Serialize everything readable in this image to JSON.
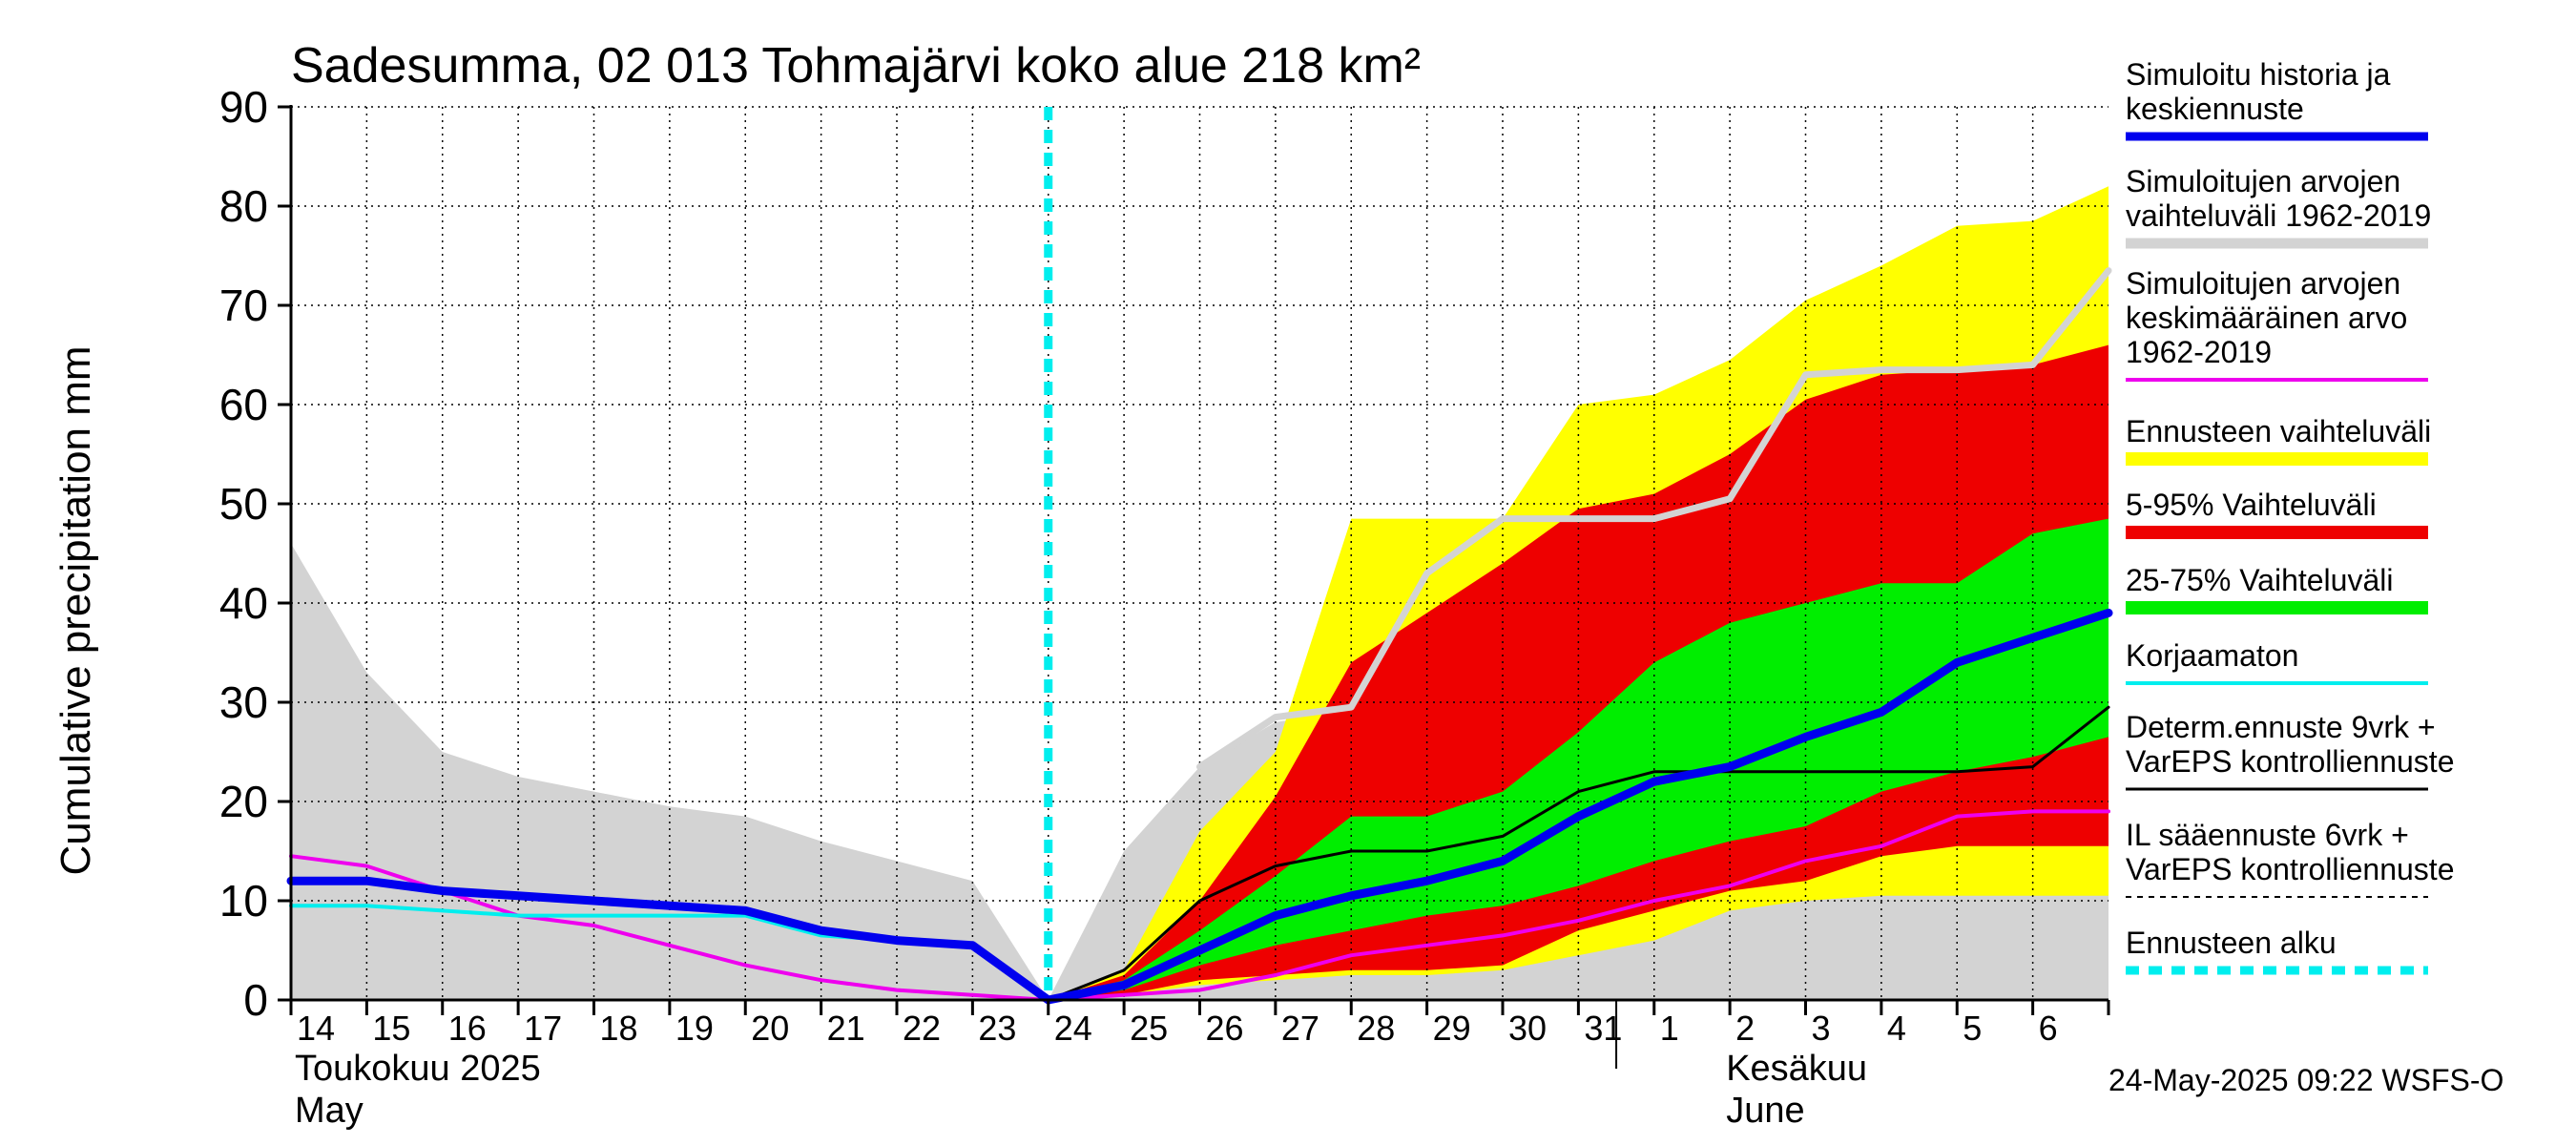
{
  "title": "Sadesumma, 02 013 Tohmajärvi koko alue 218 km²",
  "footer": "24-May-2025 09:22 WSFS-O",
  "colors": {
    "history": "#0000ee",
    "climate_range": "#d3d3d3",
    "climate_mean": "#ee00ee",
    "forecast_range": "#ffff00",
    "p5_95": "#ee0000",
    "p25_75": "#00ee00",
    "uncorrected": "#00eeee",
    "determ": "#000000",
    "forecast_start": "#00eeee"
  },
  "legend": [
    {
      "lines": [
        "Simuloitu historia ja",
        "keskiennuste"
      ],
      "kind": "line",
      "color": "#0000ee",
      "width": 9
    },
    {
      "lines": [
        "Simuloitujen arvojen",
        "vaihteluväli 1962-2019"
      ],
      "kind": "line",
      "color": "#d3d3d3",
      "width": 11
    },
    {
      "lines": [
        "Simuloitujen arvojen",
        "keskimääräinen arvo",
        "   1962-2019"
      ],
      "kind": "line",
      "color": "#ee00ee",
      "width": 4
    },
    {
      "lines": [
        "Ennusteen vaihteluväli"
      ],
      "kind": "line",
      "color": "#ffff00",
      "width": 14
    },
    {
      "lines": [
        "5-95% Vaihteluväli"
      ],
      "kind": "line",
      "color": "#ee0000",
      "width": 14
    },
    {
      "lines": [
        "25-75% Vaihteluväli"
      ],
      "kind": "line",
      "color": "#00ee00",
      "width": 14
    },
    {
      "lines": [
        "Korjaamaton"
      ],
      "kind": "line",
      "color": "#00eeee",
      "width": 4
    },
    {
      "lines": [
        "Determ.ennuste 9vrk +",
        "VarEPS kontrolliennuste"
      ],
      "kind": "line",
      "color": "#000000",
      "width": 3
    },
    {
      "lines": [
        "IL sääennuste 6vrk  +",
        "  VarEPS kontrolliennuste"
      ],
      "kind": "dashed",
      "color": "#000000",
      "width": 2
    },
    {
      "lines": [
        "Ennusteen alku"
      ],
      "kind": "dashed",
      "color": "#00eeee",
      "width": 9
    }
  ],
  "chart_data": {
    "type": "area",
    "title": "Sadesumma, 02 013 Tohmajärvi koko alue 218 km²",
    "ylabel": "Cumulative precipitation   mm",
    "xlabel": "",
    "ylim": [
      0,
      90
    ],
    "yticks": [
      0,
      10,
      20,
      30,
      40,
      50,
      60,
      70,
      80,
      90
    ],
    "xlim": [
      0,
      24
    ],
    "x_tick_labels": [
      "14",
      "15",
      "16",
      "17",
      "18",
      "19",
      "20",
      "21",
      "22",
      "23",
      "24",
      "25",
      "26",
      "27",
      "28",
      "29",
      "30",
      "31",
      "1",
      "2",
      "3",
      "4",
      "5",
      "6"
    ],
    "month_labels": [
      {
        "x": 0,
        "lines": [
          "Toukokuu  2025",
          "May"
        ]
      },
      {
        "x": 18.9,
        "lines": [
          "Kesäkuu",
          "June"
        ]
      }
    ],
    "month_divider_x": 17.5,
    "forecast_start_x": 10,
    "grid": true,
    "legend_position": "right",
    "series": [
      {
        "name": "Simuloitujen arvojen vaihteluväli 1962-2019",
        "kind": "band",
        "color": "#d3d3d3",
        "x": [
          0,
          1,
          2,
          3,
          4,
          5,
          6,
          7,
          8,
          9,
          10,
          11,
          12,
          13,
          14,
          15,
          16,
          17,
          18,
          19,
          20,
          21,
          22,
          23,
          24
        ],
        "upper": [
          46,
          33,
          25,
          22.5,
          21,
          19.5,
          18.5,
          16,
          14,
          12,
          0,
          15,
          23.5,
          28,
          29,
          40,
          46,
          48,
          48.5,
          49,
          61,
          62,
          63,
          64,
          73
        ],
        "lower": [
          0,
          0,
          0,
          0,
          0,
          0,
          0,
          0,
          0,
          0,
          0,
          0,
          0,
          0,
          0,
          0,
          0,
          0,
          0,
          0,
          0,
          0,
          0,
          0,
          0
        ]
      },
      {
        "name": "Ennusteen vaihteluväli",
        "kind": "band",
        "color": "#ffff00",
        "x": [
          10,
          11,
          12,
          13,
          14,
          15,
          16,
          17,
          18,
          19,
          20,
          21,
          22,
          23,
          24
        ],
        "upper": [
          0,
          3,
          17,
          25,
          48.5,
          48.5,
          48.5,
          60,
          61,
          64.5,
          70.5,
          74,
          78,
          78.5,
          82
        ],
        "lower": [
          0,
          0.5,
          1.5,
          2,
          2.5,
          2.5,
          3,
          4.5,
          6,
          9,
          10,
          10.5,
          10.5,
          10.5,
          10.5
        ]
      },
      {
        "name": "5-95% Vaihteluväli",
        "kind": "band",
        "color": "#ee0000",
        "x": [
          10,
          11,
          12,
          13,
          14,
          15,
          16,
          17,
          18,
          19,
          20,
          21,
          22,
          23,
          24
        ],
        "upper": [
          0,
          2.5,
          10,
          20.5,
          34,
          39,
          44,
          49.5,
          51,
          55,
          60.5,
          63,
          63.5,
          64,
          66
        ],
        "lower": [
          0,
          0.5,
          2,
          2.5,
          3,
          3,
          3.5,
          7,
          9,
          11,
          12,
          14.5,
          15.5,
          15.5,
          15.5
        ]
      },
      {
        "name": "25-75% Vaihteluväli",
        "kind": "band",
        "color": "#00ee00",
        "x": [
          10,
          11,
          12,
          13,
          14,
          15,
          16,
          17,
          18,
          19,
          20,
          21,
          22,
          23,
          24
        ],
        "upper": [
          0,
          2,
          7,
          12.5,
          18.5,
          18.5,
          21,
          27,
          34,
          38,
          40,
          42,
          42,
          47,
          48.5
        ],
        "lower": [
          0,
          1,
          3.5,
          5.5,
          7,
          8.5,
          9.5,
          11.5,
          14,
          16,
          17.5,
          21,
          23,
          24.5,
          26.5
        ]
      },
      {
        "name": "Simuloitujen arvojen keskimääräinen arvo 1962-2019",
        "kind": "line",
        "color": "#ee00ee",
        "width": 4,
        "x": [
          0,
          1,
          2,
          3,
          4,
          5,
          6,
          7,
          8,
          9,
          10,
          11,
          12,
          13,
          14,
          15,
          16,
          17,
          18,
          19,
          20,
          21,
          22,
          23,
          24
        ],
        "y": [
          14.5,
          13.5,
          11,
          8.5,
          7.5,
          5.5,
          3.5,
          2,
          1,
          0.5,
          0,
          0.5,
          1,
          2.5,
          4.5,
          5.5,
          6.5,
          8,
          10,
          11.5,
          14,
          15.5,
          18.5,
          19,
          19
        ]
      },
      {
        "name": "Korjaamaton",
        "kind": "line",
        "color": "#00eeee",
        "width": 4,
        "x": [
          0,
          1,
          2,
          3,
          4,
          5,
          6,
          7,
          8,
          9,
          10
        ],
        "y": [
          9.5,
          9.5,
          9,
          8.5,
          8.5,
          8.5,
          8.5,
          6.5,
          6,
          5.5,
          0
        ]
      },
      {
        "name": "Determ.ennuste 9vrk + VarEPS kontrolliennuste",
        "kind": "line",
        "color": "#000000",
        "width": 3,
        "x": [
          10,
          11,
          12,
          13,
          14,
          15,
          16,
          17,
          18,
          19,
          20,
          21,
          22,
          23,
          24
        ],
        "y": [
          0,
          3,
          10,
          13.5,
          15,
          15,
          16.5,
          21,
          23,
          23,
          23,
          23,
          23,
          23.5,
          29.5
        ]
      },
      {
        "name": "Simuloitujen arvojen vaihteluväli 1962-2019",
        "kind": "line",
        "color": "#d3d3d3",
        "width": 7,
        "x": [
          12,
          13,
          14,
          15,
          16,
          17,
          18,
          19,
          20,
          21,
          22,
          23,
          24
        ],
        "y": [
          23.5,
          28.5,
          29.5,
          43,
          48.5,
          48.5,
          48.5,
          50.5,
          63,
          63.5,
          63.5,
          64,
          73.5
        ]
      },
      {
        "name": "Simuloitu historia ja keskiennuste",
        "kind": "line",
        "color": "#0000ee",
        "width": 9,
        "x": [
          0,
          1,
          2,
          3,
          4,
          5,
          6,
          7,
          8,
          9,
          10,
          11,
          12,
          13,
          14,
          15,
          16,
          17,
          18,
          19,
          20,
          21,
          22,
          23,
          24
        ],
        "y": [
          12,
          12,
          11,
          10.5,
          10,
          9.5,
          9,
          7,
          6,
          5.5,
          0,
          1.5,
          5,
          8.5,
          10.5,
          12,
          14,
          18.5,
          22,
          23.5,
          26.5,
          29,
          34,
          36.5,
          39
        ]
      }
    ]
  }
}
